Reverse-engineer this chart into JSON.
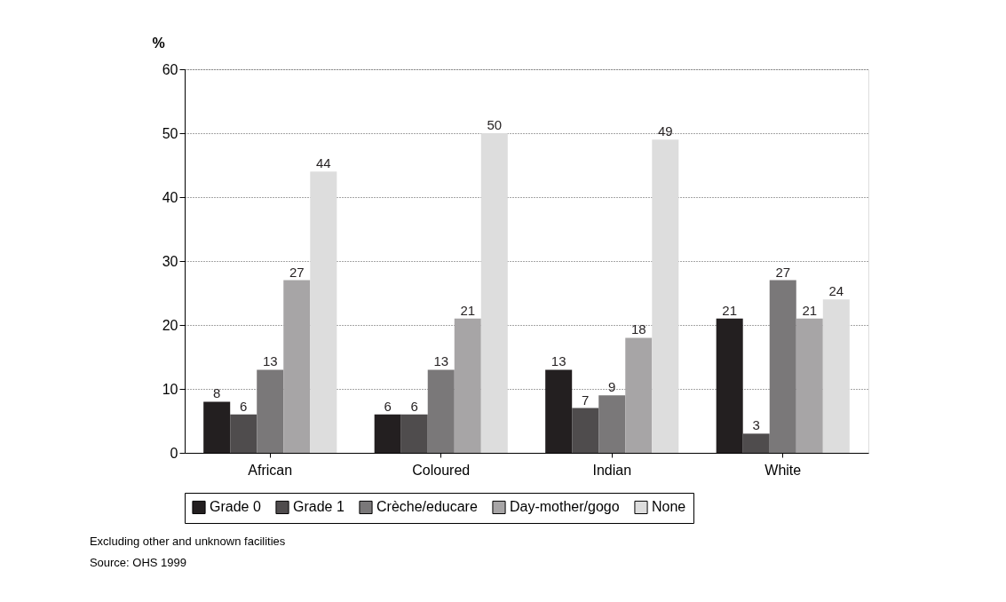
{
  "chart_data": {
    "type": "bar",
    "ylabel": "%",
    "categories": [
      "African",
      "Coloured",
      "Indian",
      "White"
    ],
    "series": [
      {
        "name": "Grade 0",
        "color": "#231f20",
        "values": [
          8,
          6,
          13,
          21
        ]
      },
      {
        "name": "Grade 1",
        "color": "#4f4c4d",
        "values": [
          6,
          6,
          7,
          3
        ]
      },
      {
        "name": "Crèche/educare",
        "color": "#7a7879",
        "values": [
          13,
          13,
          9,
          27
        ]
      },
      {
        "name": "Day-mother/gogo",
        "color": "#a7a5a6",
        "values": [
          27,
          21,
          18,
          21
        ]
      },
      {
        "name": "None",
        "color": "#dddddd",
        "values": [
          44,
          50,
          49,
          24
        ]
      }
    ],
    "ylim": [
      0,
      60
    ],
    "yticks": [
      0,
      10,
      20,
      30,
      40,
      50,
      60
    ],
    "grid": "y",
    "legend": "bottom",
    "data_labels": true,
    "annotations": [
      "Excluding other and unknown facilities",
      "Source: OHS 1999"
    ]
  }
}
